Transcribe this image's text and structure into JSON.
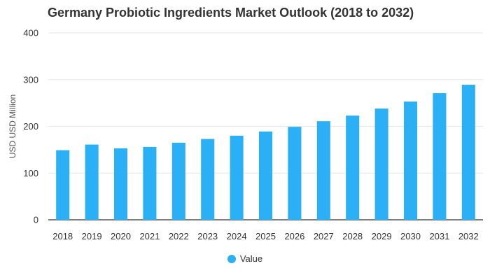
{
  "chart_data": {
    "type": "bar",
    "title": "Germany Probiotic Ingredients Market Outlook (2018 to 2032)",
    "xlabel": "",
    "ylabel": "USD USD Million",
    "categories": [
      "2018",
      "2019",
      "2020",
      "2021",
      "2022",
      "2023",
      "2024",
      "2025",
      "2026",
      "2027",
      "2028",
      "2029",
      "2030",
      "2031",
      "2032"
    ],
    "series": [
      {
        "name": "Value",
        "values": [
          149,
          161,
          153,
          156,
          165,
          173,
          180,
          189,
          199,
          211,
          223,
          238,
          253,
          271,
          289
        ]
      }
    ],
    "ylim": [
      0,
      400
    ],
    "yticks": [
      0,
      100,
      200,
      300,
      400
    ],
    "grid": true,
    "legend_position": "bottom",
    "colors": {
      "bar": "#2BB0F5",
      "grid": "#e6e6e6",
      "axis": "#333333"
    }
  }
}
